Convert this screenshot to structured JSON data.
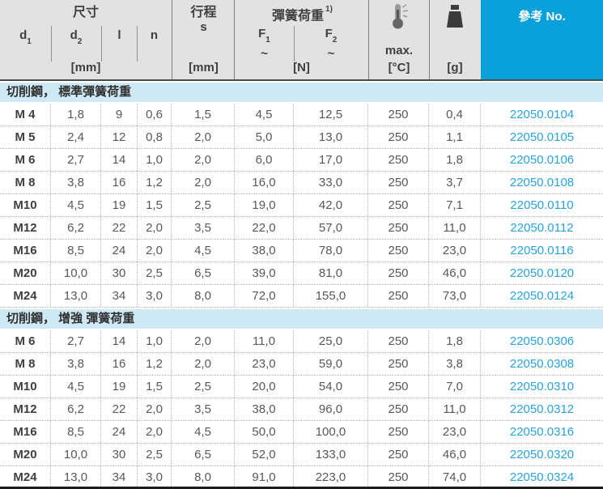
{
  "header": {
    "dim_group": "尺寸",
    "d1": {
      "base": "d",
      "sub": "1"
    },
    "d2": {
      "base": "d",
      "sub": "2"
    },
    "l": "l",
    "n": "n",
    "stroke": "行程",
    "stroke_sym": "s",
    "unit_mm_dims": "[mm]",
    "unit_mm_stroke": "[mm]",
    "spring_group": "彈簧荷重",
    "spring_footnote": "1)",
    "f1": {
      "base": "F",
      "sub": "1"
    },
    "f2": {
      "base": "F",
      "sub": "2"
    },
    "tilde1": "~",
    "tilde2": "~",
    "unit_n": "[N]",
    "temp_max": "max.",
    "unit_c": "[°C]",
    "unit_g": "[g]",
    "ref": "參考 No."
  },
  "icons": {
    "temperature": "thermometer-icon",
    "weight": "weight-icon"
  },
  "colors": {
    "accent_blue": "#0aa0db",
    "band_blue": "#cee8f4",
    "ref_link_blue": "#29a3db",
    "header_gray": "#e2e2e2"
  },
  "sections": [
    {
      "title": "切削鋼， 標準彈簧荷重",
      "rows": [
        [
          "M 4",
          "1,8",
          "9",
          "0,6",
          "1,5",
          "4,5",
          "12,5",
          "250",
          "0,4",
          "22050.0104"
        ],
        [
          "M 5",
          "2,4",
          "12",
          "0,8",
          "2,0",
          "5,0",
          "13,0",
          "250",
          "1,1",
          "22050.0105"
        ],
        [
          "M 6",
          "2,7",
          "14",
          "1,0",
          "2,0",
          "6,0",
          "17,0",
          "250",
          "1,8",
          "22050.0106"
        ],
        [
          "M 8",
          "3,8",
          "16",
          "1,2",
          "2,0",
          "16,0",
          "33,0",
          "250",
          "3,7",
          "22050.0108"
        ],
        [
          "M10",
          "4,5",
          "19",
          "1,5",
          "2,5",
          "19,0",
          "42,0",
          "250",
          "7,1",
          "22050.0110"
        ],
        [
          "M12",
          "6,2",
          "22",
          "2,0",
          "3,5",
          "22,0",
          "57,0",
          "250",
          "11,0",
          "22050.0112"
        ],
        [
          "M16",
          "8,5",
          "24",
          "2,0",
          "4,5",
          "38,0",
          "78,0",
          "250",
          "23,0",
          "22050.0116"
        ],
        [
          "M20",
          "10,0",
          "30",
          "2,5",
          "6,5",
          "39,0",
          "81,0",
          "250",
          "46,0",
          "22050.0120"
        ],
        [
          "M24",
          "13,0",
          "34",
          "3,0",
          "8,0",
          "72,0",
          "155,0",
          "250",
          "73,0",
          "22050.0124"
        ]
      ]
    },
    {
      "title": "切削鋼， 增強 彈簧荷重",
      "rows": [
        [
          "M 6",
          "2,7",
          "14",
          "1,0",
          "2,0",
          "11,0",
          "25,0",
          "250",
          "1,8",
          "22050.0306"
        ],
        [
          "M 8",
          "3,8",
          "16",
          "1,2",
          "2,0",
          "23,0",
          "59,0",
          "250",
          "3,8",
          "22050.0308"
        ],
        [
          "M10",
          "4,5",
          "19",
          "1,5",
          "2,5",
          "20,0",
          "54,0",
          "250",
          "7,0",
          "22050.0310"
        ],
        [
          "M12",
          "6,2",
          "22",
          "2,0",
          "3,5",
          "38,0",
          "96,0",
          "250",
          "11,0",
          "22050.0312"
        ],
        [
          "M16",
          "8,5",
          "24",
          "2,0",
          "4,5",
          "50,0",
          "100,0",
          "250",
          "23,0",
          "22050.0316"
        ],
        [
          "M20",
          "10,0",
          "30",
          "2,5",
          "6,5",
          "52,0",
          "133,0",
          "250",
          "46,0",
          "22050.0320"
        ],
        [
          "M24",
          "13,0",
          "34",
          "3,0",
          "8,0",
          "91,0",
          "223,0",
          "250",
          "74,0",
          "22050.0324"
        ]
      ]
    }
  ]
}
